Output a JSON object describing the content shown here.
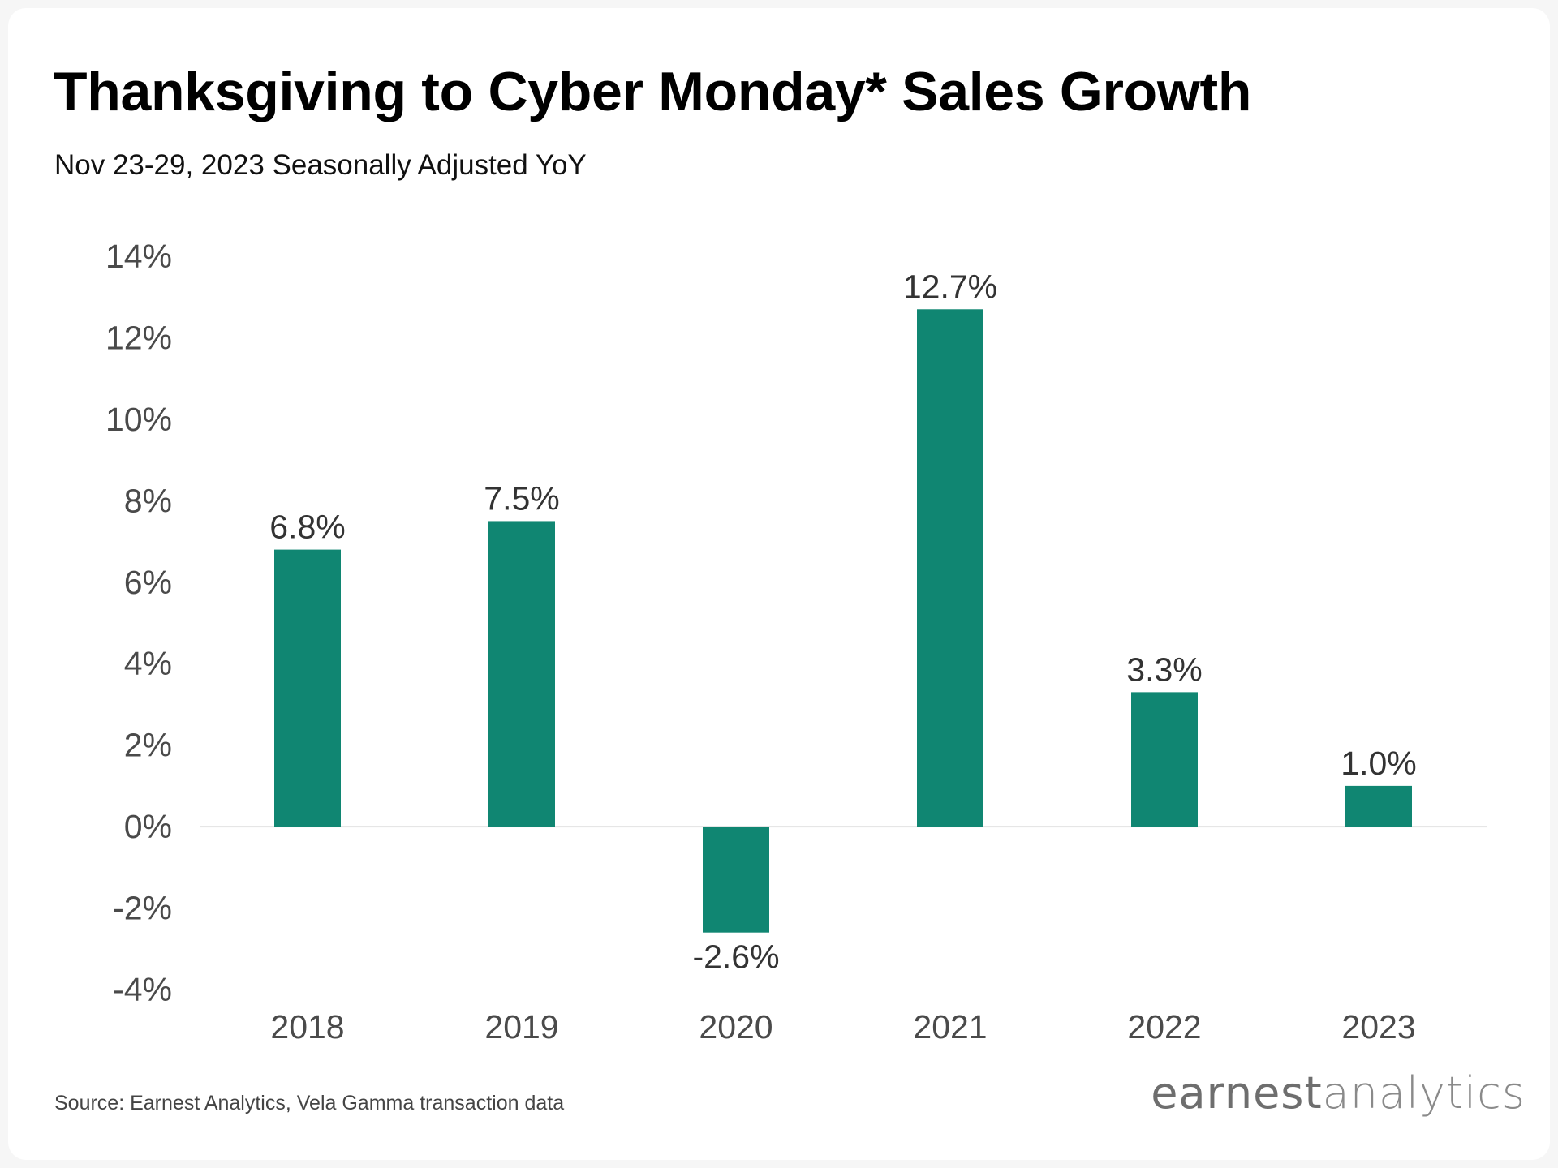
{
  "header": {
    "title": "Thanksgiving to Cyber Monday* Sales Growth",
    "subtitle": "Nov 23-29, 2023 Seasonally Adjusted YoY"
  },
  "footer": {
    "source": "Source: Earnest Analytics, Vela Gamma transaction data",
    "logo_part1": "earnest",
    "logo_part2": "analytics"
  },
  "colors": {
    "bar": "#108672",
    "zero_line": "#e3e3e3",
    "tick_text": "#4a4a4a",
    "label_text": "#333333"
  },
  "chart_data": {
    "type": "bar",
    "title": "Thanksgiving to Cyber Monday* Sales Growth",
    "subtitle": "Nov 23-29, 2023 Seasonally Adjusted YoY",
    "categories": [
      "2018",
      "2019",
      "2020",
      "2021",
      "2022",
      "2023"
    ],
    "values": [
      6.8,
      7.5,
      -2.6,
      12.7,
      3.3,
      1.0
    ],
    "data_labels": [
      "6.8%",
      "7.5%",
      "-2.6%",
      "12.7%",
      "3.3%",
      "1.0%"
    ],
    "yticks": [
      -4,
      -2,
      0,
      2,
      4,
      6,
      8,
      10,
      12,
      14
    ],
    "ytick_labels": [
      "-4%",
      "-2%",
      "0%",
      "2%",
      "4%",
      "6%",
      "8%",
      "10%",
      "12%",
      "14%"
    ],
    "ylim": [
      -4,
      14
    ],
    "xlabel": "",
    "ylabel": "",
    "grid": false,
    "legend": "none"
  }
}
